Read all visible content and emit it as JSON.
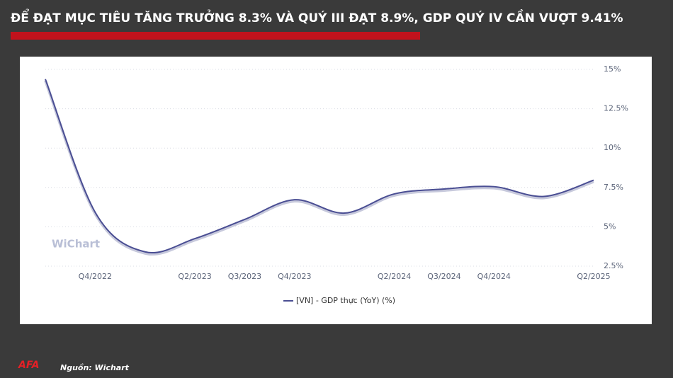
{
  "chart_data": {
    "type": "line",
    "title": "ĐỂ ĐẠT MỤC TIÊU TĂNG TRƯỞNG 8.3% VÀ QUÝ III ĐẠT 8.9%, GDP QUÝ IV CẦN VƯỢT 9.41%",
    "watermark": "WiChart",
    "source": "Nguồn: Wichart",
    "logo": "AFA",
    "categories": [
      null,
      "Q4/2022",
      null,
      "Q2/2023",
      "Q3/2023",
      "Q4/2023",
      null,
      "Q2/2024",
      "Q3/2024",
      "Q4/2024",
      null,
      "Q2/2025"
    ],
    "series": [
      {
        "name": "[VN] - GDP thực (YoY) (%)",
        "color": "#4a4e93",
        "values": [
          14.38,
          5.92,
          3.41,
          4.25,
          5.47,
          6.72,
          5.87,
          7.09,
          7.4,
          7.55,
          6.93,
          7.96
        ]
      }
    ],
    "ylim": [
      2.5,
      15
    ],
    "yticks": [
      {
        "value": 2.5,
        "label": "2.5%"
      },
      {
        "value": 5,
        "label": "5%"
      },
      {
        "value": 7.5,
        "label": "7.5%"
      },
      {
        "value": 10,
        "label": "10%"
      },
      {
        "value": 12.5,
        "label": "12.5%"
      },
      {
        "value": 15,
        "label": "15%"
      }
    ],
    "grid": true,
    "legend": "bottom"
  }
}
